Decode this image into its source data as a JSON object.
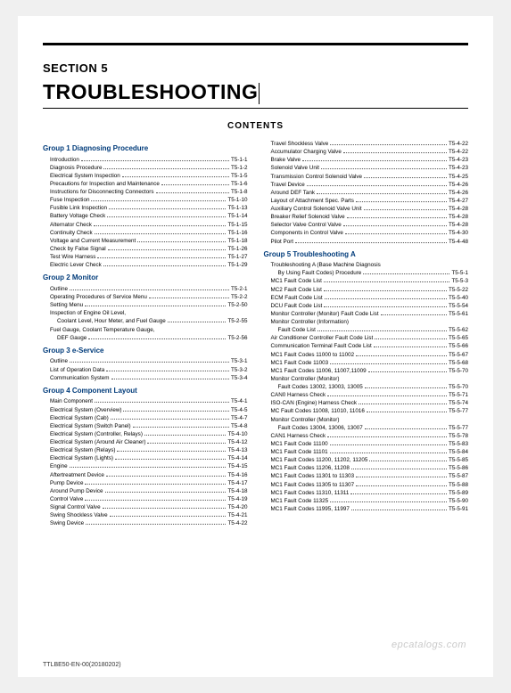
{
  "section_label": "SECTION 5",
  "title": "TROUBLESHOOTING",
  "contents_header": "CONTENTS",
  "footer_left": "TTLBE50-EN-00(20180202)",
  "watermark": "epcatalogs.com",
  "columns": [
    [
      {
        "type": "group",
        "text": "Group 1 Diagnosing Procedure"
      },
      {
        "type": "row",
        "indent": 1,
        "label": "Introduction",
        "page": "T5-1-1"
      },
      {
        "type": "row",
        "indent": 1,
        "label": "Diagnosis Procedure",
        "page": "T5-1-2"
      },
      {
        "type": "row",
        "indent": 1,
        "label": "Electrical System Inspection",
        "page": "T5-1-5"
      },
      {
        "type": "row",
        "indent": 1,
        "label": "Precautions for Inspection and Maintenance",
        "page": "T5-1-6"
      },
      {
        "type": "row",
        "indent": 1,
        "label": "Instructions for Disconnecting Connectors",
        "page": "T5-1-8"
      },
      {
        "type": "row",
        "indent": 1,
        "label": "Fuse Inspection",
        "page": "T5-1-10"
      },
      {
        "type": "row",
        "indent": 1,
        "label": "Fusible Link Inspection",
        "page": "T5-1-13"
      },
      {
        "type": "row",
        "indent": 1,
        "label": "Battery Voltage Check",
        "page": "T5-1-14"
      },
      {
        "type": "row",
        "indent": 1,
        "label": "Alternator Check",
        "page": "T5-1-15"
      },
      {
        "type": "row",
        "indent": 1,
        "label": "Continuity Check",
        "page": "T5-1-16"
      },
      {
        "type": "row",
        "indent": 1,
        "label": "Voltage and Current Measurement",
        "page": "T5-1-18"
      },
      {
        "type": "row",
        "indent": 1,
        "label": "Check by False Signal",
        "page": "T5-1-26"
      },
      {
        "type": "row",
        "indent": 1,
        "label": "Test Wire Harness",
        "page": "T5-1-27"
      },
      {
        "type": "row",
        "indent": 1,
        "label": "Electric Lever Check",
        "page": "T5-1-29"
      },
      {
        "type": "group",
        "text": "Group 2 Monitor"
      },
      {
        "type": "row",
        "indent": 1,
        "label": "Outline",
        "page": "T5-2-1"
      },
      {
        "type": "row",
        "indent": 1,
        "label": "Operating Procedures of Service Menu",
        "page": "T5-2-2"
      },
      {
        "type": "row",
        "indent": 1,
        "label": "Setting Menu",
        "page": "T5-2-50"
      },
      {
        "type": "sub",
        "indent": 1,
        "label": "Inspection of Engine Oil Level,"
      },
      {
        "type": "row",
        "indent": 2,
        "label": "Coolant Level, Hour Meter, and Fuel Gauge",
        "page": "T5-2-55"
      },
      {
        "type": "sub",
        "indent": 1,
        "label": "Fuel Gauge, Coolant Temperature Gauge,"
      },
      {
        "type": "row",
        "indent": 2,
        "label": "DEF Gauge",
        "page": "T5-2-56"
      },
      {
        "type": "group",
        "text": "Group 3 e-Service"
      },
      {
        "type": "row",
        "indent": 1,
        "label": "Outline",
        "page": "T5-3-1"
      },
      {
        "type": "row",
        "indent": 1,
        "label": "List of Operation Data",
        "page": "T5-3-2"
      },
      {
        "type": "row",
        "indent": 1,
        "label": "Communication System",
        "page": "T5-3-4"
      },
      {
        "type": "group",
        "text": "Group 4 Component Layout"
      },
      {
        "type": "row",
        "indent": 1,
        "label": "Main Component",
        "page": "T5-4-1"
      },
      {
        "type": "row",
        "indent": 1,
        "label": "Electrical System (Overview)",
        "page": "T5-4-5"
      },
      {
        "type": "row",
        "indent": 1,
        "label": "Electrical System (Cab)",
        "page": "T5-4-7"
      },
      {
        "type": "row",
        "indent": 1,
        "label": "Electrical System (Switch Panel)",
        "page": "T5-4-8"
      },
      {
        "type": "row",
        "indent": 1,
        "label": "Electrical System (Controller, Relays)",
        "page": "T5-4-10"
      },
      {
        "type": "row",
        "indent": 1,
        "label": "Electrical System (Around Air Cleaner)",
        "page": "T5-4-12"
      },
      {
        "type": "row",
        "indent": 1,
        "label": "Electrical System (Relays)",
        "page": "T5-4-13"
      },
      {
        "type": "row",
        "indent": 1,
        "label": "Electrical System (Lights)",
        "page": "T5-4-14"
      },
      {
        "type": "row",
        "indent": 1,
        "label": "Engine",
        "page": "T5-4-15"
      },
      {
        "type": "row",
        "indent": 1,
        "label": "Aftertreatment Device",
        "page": "T5-4-16"
      },
      {
        "type": "row",
        "indent": 1,
        "label": "Pump Device",
        "page": "T5-4-17"
      },
      {
        "type": "row",
        "indent": 1,
        "label": "Around Pump Device",
        "page": "T5-4-18"
      },
      {
        "type": "row",
        "indent": 1,
        "label": "Control Valve",
        "page": "T5-4-19"
      },
      {
        "type": "row",
        "indent": 1,
        "label": "Signal Control Valve",
        "page": "T5-4-20"
      },
      {
        "type": "row",
        "indent": 1,
        "label": "Swing Shockless Valve",
        "page": "T5-4-21"
      },
      {
        "type": "row",
        "indent": 1,
        "label": "Swing Device",
        "page": "T5-4-22"
      }
    ],
    [
      {
        "type": "row",
        "indent": 1,
        "label": "Travel Shockless Valve",
        "page": "T5-4-22"
      },
      {
        "type": "row",
        "indent": 1,
        "label": "Accumulator Charging Valve",
        "page": "T5-4-22"
      },
      {
        "type": "row",
        "indent": 1,
        "label": "Brake Valve",
        "page": "T5-4-23"
      },
      {
        "type": "row",
        "indent": 1,
        "label": "Solenoid Valve Unit",
        "page": "T5-4-23"
      },
      {
        "type": "row",
        "indent": 1,
        "label": "Transmission Control Solenoid Valve",
        "page": "T5-4-25"
      },
      {
        "type": "row",
        "indent": 1,
        "label": "Travel Device",
        "page": "T5-4-26"
      },
      {
        "type": "row",
        "indent": 1,
        "label": "Around DEF Tank",
        "page": "T5-4-26"
      },
      {
        "type": "row",
        "indent": 1,
        "label": "Layout of Attachment Spec. Parts",
        "page": "T5-4-27"
      },
      {
        "type": "row",
        "indent": 1,
        "label": "Auxiliary Control Solenoid Valve Unit",
        "page": "T5-4-28"
      },
      {
        "type": "row",
        "indent": 1,
        "label": "Breaker Relief Solenoid Valve",
        "page": "T5-4-28"
      },
      {
        "type": "row",
        "indent": 1,
        "label": "Selector Valve Control Valve",
        "page": "T5-4-28"
      },
      {
        "type": "row",
        "indent": 1,
        "label": "Components in Control Valve",
        "page": "T5-4-30"
      },
      {
        "type": "row",
        "indent": 1,
        "label": "Pilot Port",
        "page": "T5-4-48"
      },
      {
        "type": "group",
        "text": "Group 5 Troubleshooting A"
      },
      {
        "type": "sub",
        "indent": 1,
        "label": "Troubleshooting A (Base Machine Diagnosis"
      },
      {
        "type": "row",
        "indent": 2,
        "label": "By Using Fault Codes) Procedure",
        "page": "T5-5-1"
      },
      {
        "type": "row",
        "indent": 1,
        "label": "MC1 Fault Code List",
        "page": "T5-5-3"
      },
      {
        "type": "row",
        "indent": 1,
        "label": "MC2 Fault Code List",
        "page": "T5-5-22"
      },
      {
        "type": "row",
        "indent": 1,
        "label": "ECM Fault Code List",
        "page": "T5-5-40"
      },
      {
        "type": "row",
        "indent": 1,
        "label": "DCU Fault Code List",
        "page": "T5-5-54"
      },
      {
        "type": "row",
        "indent": 1,
        "label": "Monitor Controller (Monitor) Fault Code List",
        "page": "T5-5-61"
      },
      {
        "type": "sub",
        "indent": 1,
        "label": "Monitor Controller (Information)"
      },
      {
        "type": "row",
        "indent": 2,
        "label": "Fault Code List",
        "page": "T5-5-62"
      },
      {
        "type": "row",
        "indent": 1,
        "label": "Air Conditioner Controller Fault Code List",
        "page": "T5-5-65"
      },
      {
        "type": "row",
        "indent": 1,
        "label": "Communication Terminal Fault Code List",
        "page": "T5-5-66"
      },
      {
        "type": "row",
        "indent": 1,
        "label": "MC1 Fault Codes 11000 to 11002",
        "page": "T5-5-67"
      },
      {
        "type": "row",
        "indent": 1,
        "label": "MC1 Fault Code 11003",
        "page": "T5-5-68"
      },
      {
        "type": "row",
        "indent": 1,
        "label": "MC1 Fault Codes 11006, 11007,11009",
        "page": "T5-5-70"
      },
      {
        "type": "sub",
        "indent": 1,
        "label": "Monitor Controller (Monitor)"
      },
      {
        "type": "row",
        "indent": 2,
        "label": "Fault Codes 13002, 13003, 13005",
        "page": "T5-5-70"
      },
      {
        "type": "row",
        "indent": 1,
        "label": "CAN0 Harness Check",
        "page": "T5-5-71"
      },
      {
        "type": "row",
        "indent": 1,
        "label": "ISO-CAN (Engine) Harness Check",
        "page": "T5-5-74"
      },
      {
        "type": "row",
        "indent": 1,
        "label": "MC Fault Codes 11008, 11010, 11016",
        "page": "T5-5-77"
      },
      {
        "type": "sub",
        "indent": 1,
        "label": "Monitor Controller (Monitor)"
      },
      {
        "type": "row",
        "indent": 2,
        "label": "Fault Codes 13004, 13006, 13007",
        "page": "T5-5-77"
      },
      {
        "type": "row",
        "indent": 1,
        "label": "CAN1 Harness Check",
        "page": "T5-5-78"
      },
      {
        "type": "row",
        "indent": 1,
        "label": "MC1 Fault Code 11100",
        "page": "T5-5-83"
      },
      {
        "type": "row",
        "indent": 1,
        "label": "MC1 Fault Code 11101",
        "page": "T5-5-84"
      },
      {
        "type": "row",
        "indent": 1,
        "label": "MC1 Fault Codes 11200, 11202, 11205",
        "page": "T5-5-85"
      },
      {
        "type": "row",
        "indent": 1,
        "label": "MC1 Fault Codes 11206, 11208",
        "page": "T5-5-86"
      },
      {
        "type": "row",
        "indent": 1,
        "label": "MC1 Fault Codes 11301 to 11303",
        "page": "T5-5-87"
      },
      {
        "type": "row",
        "indent": 1,
        "label": "MC1 Fault Codes 11305 to 11307",
        "page": "T5-5-88"
      },
      {
        "type": "row",
        "indent": 1,
        "label": "MC1 Fault Codes 11310, 11311",
        "page": "T5-5-89"
      },
      {
        "type": "row",
        "indent": 1,
        "label": "MC1 Fault Code 11325",
        "page": "T5-5-90"
      },
      {
        "type": "row",
        "indent": 1,
        "label": "MC1 Fault Codes 11995, 11997",
        "page": "T5-5-91"
      }
    ]
  ]
}
